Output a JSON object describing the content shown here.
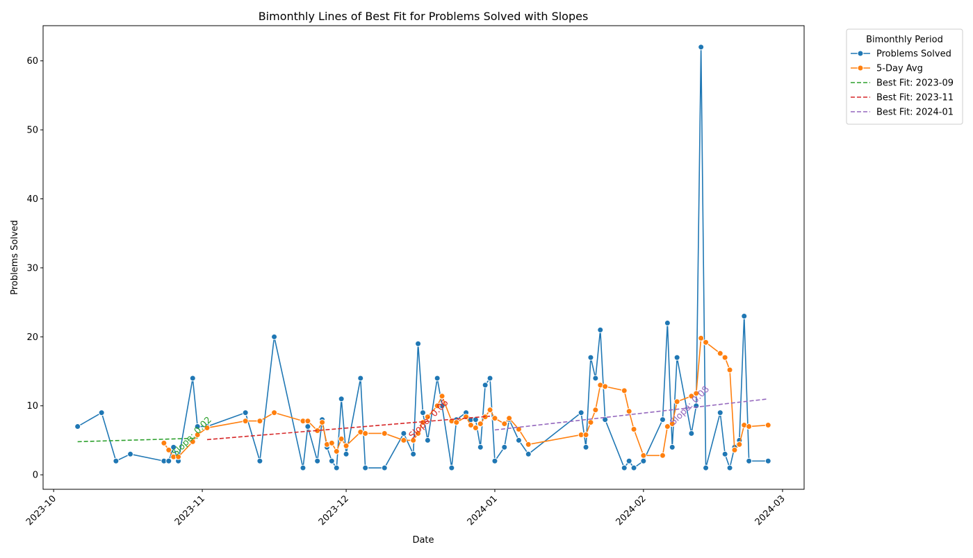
{
  "chart_data": {
    "type": "line",
    "title": "Bimonthly Lines of Best Fit for Problems Solved with Slopes",
    "xlabel": "Date",
    "ylabel": "Problems Solved",
    "xlim": [
      -2.2,
      156.5
    ],
    "ylim": [
      -2.1,
      65.1
    ],
    "xticks": [
      {
        "value": 0,
        "label": "2023-10"
      },
      {
        "value": 31,
        "label": "2023-11"
      },
      {
        "value": 61,
        "label": "2023-12"
      },
      {
        "value": 92,
        "label": "2024-01"
      },
      {
        "value": 123,
        "label": "2024-02"
      },
      {
        "value": 152,
        "label": "2024-03"
      }
    ],
    "yticks": [
      0,
      10,
      20,
      30,
      40,
      50,
      60
    ],
    "grid": false,
    "legend_title": "Bimonthly Period",
    "legend_position": "outside-upper-right",
    "series": [
      {
        "name": "Problems Solved",
        "color": "#1f77b4",
        "linestyle": "solid",
        "marker": true,
        "x": [
          5,
          10,
          13,
          16,
          23,
          24,
          25,
          26,
          29,
          30,
          32,
          40,
          43,
          46,
          52,
          53,
          55,
          56,
          57,
          58,
          59,
          60,
          61,
          64,
          65,
          69,
          73,
          75,
          76,
          77,
          78,
          80,
          81,
          83,
          84,
          86,
          87,
          88,
          89,
          90,
          91,
          92,
          94,
          95,
          97,
          99,
          110,
          111,
          112,
          113,
          114,
          115,
          119,
          120,
          121,
          123,
          127,
          128,
          129,
          130,
          133,
          134,
          135,
          136,
          139,
          140,
          141,
          142,
          143,
          144,
          145,
          149
        ],
        "values": [
          7,
          9,
          2,
          3,
          2,
          2,
          4,
          2,
          14,
          7,
          7,
          9,
          2,
          20,
          1,
          7,
          2,
          8,
          4,
          2,
          1,
          11,
          3,
          14,
          1,
          1,
          6,
          3,
          19,
          9,
          5,
          14,
          10,
          1,
          8,
          9,
          8,
          8,
          4,
          13,
          14,
          2,
          4,
          8,
          5,
          3,
          9,
          4,
          17,
          14,
          21,
          8,
          1,
          2,
          1,
          2,
          8,
          22,
          4,
          17,
          6,
          10,
          62,
          1,
          9,
          3,
          1,
          4,
          5,
          23,
          2,
          2
        ]
      },
      {
        "name": "5-Day Avg",
        "color": "#ff7f0e",
        "linestyle": "solid",
        "marker": true,
        "x": [
          5,
          10,
          13,
          16,
          23,
          24,
          25,
          26,
          29,
          30,
          32,
          40,
          43,
          46,
          52,
          53,
          55,
          56,
          57,
          58,
          59,
          60,
          61,
          64,
          65,
          69,
          73,
          75,
          76,
          77,
          78,
          80,
          81,
          83,
          84,
          86,
          87,
          88,
          89,
          90,
          91,
          92,
          94,
          95,
          97,
          99,
          110,
          111,
          112,
          113,
          114,
          115,
          119,
          120,
          121,
          123,
          127,
          128,
          129,
          130,
          133,
          134,
          135,
          136,
          139,
          140,
          141,
          142,
          143,
          144,
          145,
          149
        ],
        "values": [
          null,
          null,
          null,
          null,
          4.6,
          3.6,
          2.6,
          2.6,
          4.8,
          5.8,
          6.8,
          7.8,
          7.8,
          9,
          7.8,
          7.8,
          6.4,
          7.6,
          4.4,
          4.6,
          3.4,
          5.2,
          4.2,
          6.2,
          6,
          6,
          5,
          5,
          6,
          7.6,
          8.4,
          10,
          11.4,
          7.8,
          7.6,
          8.4,
          7.2,
          6.8,
          7.4,
          8.4,
          9.4,
          8.2,
          7.4,
          8.2,
          6.6,
          4.4,
          5.8,
          5.8,
          7.6,
          9.4,
          13,
          12.8,
          12.2,
          9.2,
          6.6,
          2.8,
          2.8,
          7,
          7.4,
          10.6,
          11.4,
          11.8,
          19.8,
          19.2,
          17.6,
          17,
          15.2,
          3.6,
          4.4,
          7.2,
          7,
          7.2
        ]
      },
      {
        "name": "Best Fit: 2023-09",
        "color": "#2ca02c",
        "linestyle": "dashed",
        "marker": false,
        "x": [
          5,
          30
        ],
        "values": [
          4.8,
          5.3
        ],
        "annotation": "Slope: 0.02"
      },
      {
        "name": "Best Fit: 2023-11",
        "color": "#d62728",
        "linestyle": "dashed",
        "marker": false,
        "x": [
          32,
          91
        ],
        "values": [
          5.1,
          8.5
        ],
        "annotation": "Slope: 0.06"
      },
      {
        "name": "Best Fit: 2024-01",
        "color": "#9467bd",
        "linestyle": "dashed",
        "marker": false,
        "x": [
          92,
          149
        ],
        "values": [
          6.5,
          11.0
        ],
        "annotation": "Slope: 0.08"
      }
    ]
  }
}
